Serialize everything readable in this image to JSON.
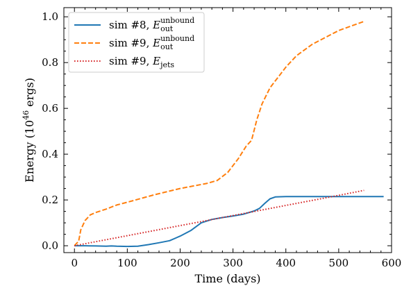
{
  "chart_data": {
    "type": "line",
    "xlabel": "Time (days)",
    "ylabel": {
      "main": "Energy (10",
      "sup": "46",
      "tail": " ergs)"
    },
    "xlim": [
      -20,
      600
    ],
    "ylim": [
      -0.03,
      1.04
    ],
    "xticks": [
      0,
      100,
      200,
      300,
      400,
      500,
      600
    ],
    "xtick_labels": [
      "0",
      "100",
      "200",
      "300",
      "400",
      "500",
      "600"
    ],
    "yticks": [
      0.0,
      0.2,
      0.4,
      0.6,
      0.8,
      1.0
    ],
    "ytick_labels": [
      "0.0",
      "0.2",
      "0.4",
      "0.6",
      "0.8",
      "1.0"
    ],
    "minor_xticks": [
      -20,
      20,
      40,
      60,
      80,
      120,
      140,
      160,
      180,
      220,
      240,
      260,
      280,
      320,
      340,
      360,
      380,
      420,
      440,
      460,
      480,
      520,
      540,
      560,
      580
    ],
    "minor_yticks": [
      0.05,
      0.1,
      0.15,
      0.25,
      0.3,
      0.35,
      0.45,
      0.5,
      0.55,
      0.65,
      0.7,
      0.75,
      0.85,
      0.9,
      0.95
    ],
    "grid": false,
    "legend_position": "top-left",
    "series": [
      {
        "name": {
          "base": "sim #8, ",
          "sym": "E",
          "sub": "out",
          "sup": "unbound"
        },
        "color": "#1f77b4",
        "style": "solid",
        "x": [
          0,
          20,
          40,
          60,
          70,
          80,
          100,
          120,
          140,
          160,
          180,
          200,
          220,
          240,
          260,
          280,
          300,
          320,
          340,
          350,
          360,
          370,
          380,
          400,
          450,
          500,
          550,
          585
        ],
        "y": [
          0.0,
          0.0,
          -0.001,
          -0.002,
          -0.001,
          -0.002,
          -0.003,
          -0.002,
          0.005,
          0.013,
          0.022,
          0.042,
          0.066,
          0.1,
          0.115,
          0.123,
          0.13,
          0.138,
          0.152,
          0.163,
          0.185,
          0.205,
          0.213,
          0.215,
          0.215,
          0.215,
          0.215,
          0.215
        ]
      },
      {
        "name": {
          "base": "sim #9, ",
          "sym": "E",
          "sub": "out",
          "sup": "unbound"
        },
        "color": "#ff7f0e",
        "style": "dashed",
        "x": [
          0,
          8,
          12,
          20,
          30,
          40,
          60,
          80,
          100,
          150,
          200,
          250,
          270,
          290,
          310,
          325,
          335,
          345,
          355,
          370,
          400,
          420,
          450,
          500,
          548
        ],
        "y": [
          0.0,
          0.02,
          0.07,
          0.11,
          0.135,
          0.145,
          0.16,
          0.178,
          0.19,
          0.222,
          0.25,
          0.272,
          0.285,
          0.32,
          0.38,
          0.435,
          0.46,
          0.55,
          0.62,
          0.69,
          0.78,
          0.83,
          0.88,
          0.94,
          0.98
        ]
      },
      {
        "name": {
          "base": "sim #9, ",
          "sym": "E",
          "sub": "jets",
          "sup": ""
        },
        "color": "#d62728",
        "style": "dotted",
        "x": [
          0,
          100,
          200,
          300,
          400,
          500,
          548
        ],
        "y": [
          0.0,
          0.044,
          0.088,
          0.132,
          0.176,
          0.22,
          0.242
        ]
      }
    ]
  }
}
